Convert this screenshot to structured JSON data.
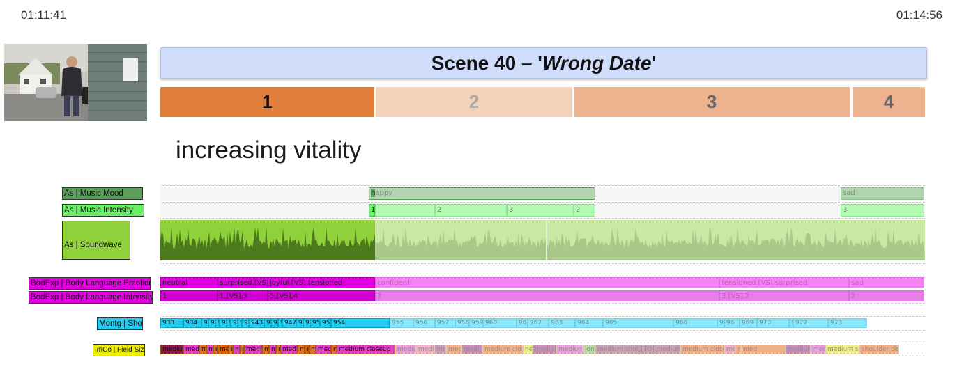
{
  "time_start": "01:11:41",
  "time_end": "01:14:56",
  "scene": {
    "prefix": "Scene 40 – '",
    "name": "Wrong Date",
    "suffix": "'"
  },
  "segments": [
    "1",
    "2",
    "3",
    "4"
  ],
  "annotation": "increasing vitality",
  "labels": {
    "music_mood": "As | Music Mood",
    "music_intensity": "As | Music Intensity",
    "soundwave": "As | Soundwave",
    "body_emotion": "BodExp | Body Language Emotion",
    "body_intensity": "BodExp | Body Language Intensity",
    "shot": "Montg | Shot",
    "field_size": "ImCo | Field Size"
  },
  "music_mood": [
    "happy",
    "sad"
  ],
  "music_intensity": [
    "1",
    "2",
    "3",
    "2",
    "3"
  ],
  "body_emotion": [
    "neutral",
    "surprised,[VS],",
    "joyful,[VS],tensioned",
    "confident",
    "tensioned,[VS],surprised",
    "sad"
  ],
  "body_intensity": [
    "1",
    "1,[VS],3",
    "5,[VS],4",
    "3",
    "3,[VS],2",
    "2"
  ],
  "shots": [
    "933",
    "934",
    "93",
    "934",
    "9:",
    "934",
    "9:",
    "940",
    "9.",
    "94",
    "943",
    "94",
    "94!",
    "94",
    "947",
    "94",
    "995",
    "952",
    "95",
    "954",
    "955",
    "956",
    "957",
    "958",
    "959",
    "960",
    "96",
    "962",
    "963",
    "964",
    "965",
    "966",
    "967",
    "96",
    "969",
    "970",
    "971",
    "972",
    "973"
  ],
  "field_sizes": [
    "medium",
    "medi",
    "m",
    "me",
    "m",
    "me",
    "m",
    "me",
    "m",
    "medi",
    "m",
    "me",
    "m",
    "medi",
    "m",
    "m",
    "m",
    "medi",
    "m",
    "medium closeup",
    "mediu",
    "mediu",
    "me",
    "medi",
    "medi",
    "medium close",
    "ne",
    "medium",
    "medium",
    "long",
    "medium shot,[TO],medium",
    "medium closeu",
    "medi",
    "m",
    "med",
    "medium cl",
    "med",
    "medium sh",
    "shoulder clos"
  ],
  "colors": {
    "scene_bg": "#cfddfb",
    "seg1": "#e07f3c",
    "seg2": "#f5d2ba",
    "seg3": "#ecb38e",
    "seg4": "#ecb38e",
    "mood": "#5a9e5a",
    "intensity": "#66f066",
    "soundwave": "#8fd13a",
    "body": "#e000e0",
    "shot": "#22ccee",
    "field": "#eeee00"
  }
}
